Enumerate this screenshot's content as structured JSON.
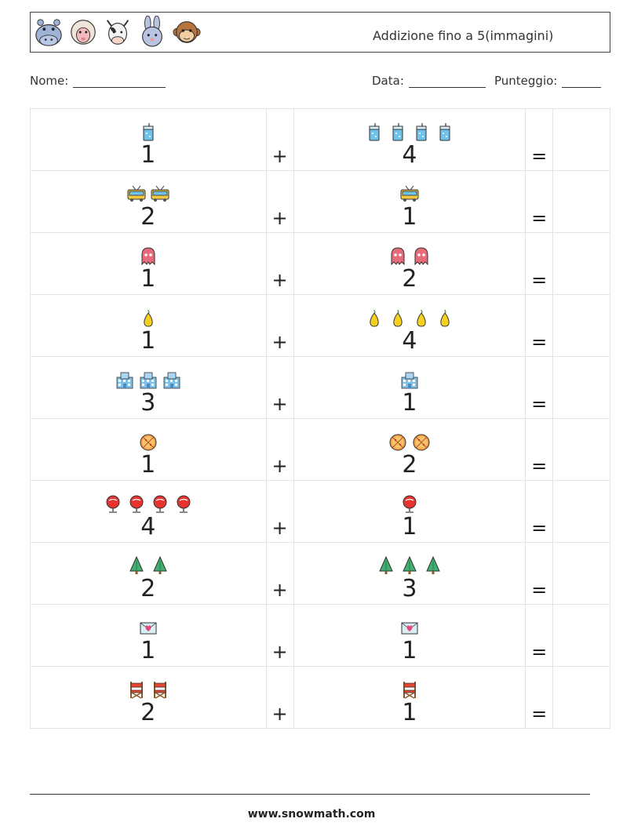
{
  "header": {
    "title": "Addizione fino a 5(immagini)",
    "animals": [
      "hippo-icon",
      "sheep-icon",
      "cow-icon",
      "rabbit-icon",
      "monkey-icon"
    ]
  },
  "form": {
    "name_label": "Nome:",
    "date_label": "Data:",
    "score_label": "Punteggio:"
  },
  "symbols": {
    "plus": "+",
    "equals": "="
  },
  "problems": [
    {
      "icon": "cup",
      "a": 1,
      "b": 4
    },
    {
      "icon": "trolleybus",
      "a": 2,
      "b": 1
    },
    {
      "icon": "ghost",
      "a": 1,
      "b": 2
    },
    {
      "icon": "pear",
      "a": 1,
      "b": 4
    },
    {
      "icon": "building",
      "a": 3,
      "b": 1
    },
    {
      "icon": "pizza",
      "a": 1,
      "b": 2
    },
    {
      "icon": "lollipop",
      "a": 4,
      "b": 1
    },
    {
      "icon": "tree",
      "a": 2,
      "b": 3
    },
    {
      "icon": "love-letter",
      "a": 1,
      "b": 1
    },
    {
      "icon": "director-chair",
      "a": 2,
      "b": 1
    }
  ],
  "footer": {
    "url": "www.snowmath.com"
  }
}
